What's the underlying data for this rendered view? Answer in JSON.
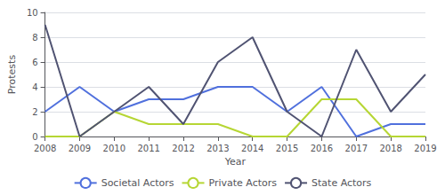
{
  "chart_data": {
    "type": "line",
    "x": [
      2008,
      2009,
      2010,
      2011,
      2012,
      2013,
      2014,
      2015,
      2016,
      2017,
      2018,
      2019
    ],
    "xlim": [
      2008,
      2019
    ],
    "xticks": [
      2008,
      2009,
      2010,
      2011,
      2012,
      2013,
      2014,
      2015,
      2016,
      2017,
      2018,
      2019
    ],
    "xlabel": "Year",
    "ylabel": "Protests",
    "ylim": [
      0,
      10
    ],
    "yticks": [
      0,
      2,
      4,
      6,
      8,
      10
    ],
    "grid": true,
    "legend": "bottom",
    "series": [
      {
        "name": "Societal Actors",
        "values": [
          2,
          4,
          2,
          3,
          3,
          4,
          4,
          2,
          4,
          0,
          1,
          1
        ]
      },
      {
        "name": "Private Actors",
        "values": [
          0,
          0,
          2,
          1,
          1,
          1,
          0,
          0,
          3,
          3,
          0,
          0
        ]
      },
      {
        "name": "State Actors",
        "values": [
          9,
          0,
          2,
          4,
          1,
          6,
          8,
          2,
          0,
          7,
          2,
          5
        ]
      }
    ]
  }
}
